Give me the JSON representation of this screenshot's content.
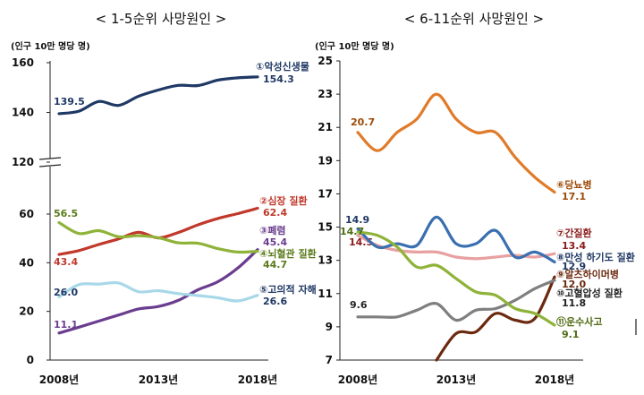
{
  "chart_data": [
    {
      "type": "line",
      "title": "< 1-5순위 사망원인 >",
      "unit_label": "(인구 10만 명당 명)",
      "x_ticks": [
        "2008년",
        "2013년",
        "2018년"
      ],
      "x_range": [
        2008,
        2018
      ],
      "y_ticks_upper": [
        "120",
        "140",
        "160"
      ],
      "y_ticks_lower": [
        "0",
        "20",
        "40",
        "60"
      ],
      "axis_break": "between 60 and 120",
      "grid": false,
      "series": [
        {
          "name": "①악성신생물",
          "color": "#1f3864",
          "x": [
            2008,
            2009,
            2010,
            2011,
            2012,
            2013,
            2014,
            2015,
            2016,
            2017,
            2018
          ],
          "values": [
            139.5,
            140.5,
            144.4,
            142.8,
            146.5,
            149.0,
            150.9,
            150.8,
            153.0,
            153.9,
            154.3
          ],
          "start_label": "139.5",
          "end_label": "154.3"
        },
        {
          "name": "②심장 질환",
          "color": "#c0392b",
          "x": [
            2008,
            2009,
            2010,
            2011,
            2012,
            2013,
            2014,
            2015,
            2016,
            2017,
            2018
          ],
          "values": [
            43.4,
            45.0,
            47.5,
            49.8,
            52.5,
            50.2,
            52.4,
            55.6,
            58.2,
            60.2,
            62.4
          ],
          "start_label": "43.4",
          "end_label": "62.4"
        },
        {
          "name": "③폐렴",
          "color": "#6a3d8f",
          "x": [
            2008,
            2009,
            2010,
            2011,
            2012,
            2013,
            2014,
            2015,
            2016,
            2017,
            2018
          ],
          "values": [
            11.1,
            13.5,
            16.0,
            18.5,
            21.0,
            22.0,
            24.5,
            28.9,
            32.2,
            37.8,
            45.4
          ],
          "start_label": "11.1",
          "end_label": "45.4"
        },
        {
          "name": "④뇌혈관 질환",
          "color": "#8fb339",
          "x": [
            2008,
            2009,
            2010,
            2011,
            2012,
            2013,
            2014,
            2015,
            2016,
            2017,
            2018
          ],
          "values": [
            56.5,
            52.0,
            53.2,
            50.7,
            51.1,
            50.3,
            48.2,
            48.0,
            45.8,
            44.4,
            44.7
          ],
          "start_label": "56.5",
          "end_label": "44.7"
        },
        {
          "name": "⑤고의적 자해",
          "color": "#a8d8e8",
          "x": [
            2008,
            2009,
            2010,
            2011,
            2012,
            2013,
            2014,
            2015,
            2016,
            2017,
            2018
          ],
          "values": [
            26.0,
            31.0,
            31.2,
            31.7,
            28.1,
            28.5,
            27.3,
            26.5,
            25.6,
            24.3,
            26.6
          ],
          "start_label": "26.0",
          "end_label": "26.6"
        }
      ]
    },
    {
      "type": "line",
      "title": "< 6-11순위 사망원인 >",
      "unit_label": "(인구 10만 명당 명)",
      "x_ticks": [
        "2008년",
        "2013년",
        "2018년"
      ],
      "x_range": [
        2008,
        2018
      ],
      "ylim": [
        7,
        25
      ],
      "y_ticks": [
        "7",
        "9",
        "11",
        "13",
        "15",
        "17",
        "19",
        "21",
        "23",
        "25"
      ],
      "grid": false,
      "series": [
        {
          "name": "⑥당뇨병",
          "color": "#e07b2a",
          "x": [
            2008,
            2009,
            2010,
            2011,
            2012,
            2013,
            2014,
            2015,
            2016,
            2017,
            2018
          ],
          "values": [
            20.7,
            19.6,
            20.7,
            21.5,
            23.0,
            21.5,
            20.7,
            20.7,
            19.2,
            18.0,
            17.1
          ],
          "start_label": "20.7",
          "end_label": "17.1"
        },
        {
          "name": "⑦간질환",
          "color": "#e8a0a0",
          "x": [
            2008,
            2009,
            2010,
            2011,
            2012,
            2013,
            2014,
            2015,
            2016,
            2017,
            2018
          ],
          "values": [
            14.5,
            13.9,
            13.6,
            13.5,
            13.5,
            13.2,
            13.1,
            13.2,
            13.3,
            13.2,
            13.4
          ],
          "start_label": "14.5",
          "end_label": "13.4"
        },
        {
          "name": "⑧만성 하기도 질환",
          "color": "#3a6fb0",
          "x": [
            2008,
            2009,
            2010,
            2011,
            2012,
            2013,
            2014,
            2015,
            2016,
            2017,
            2018
          ],
          "values": [
            14.9,
            13.8,
            14.0,
            13.9,
            15.6,
            14.0,
            14.0,
            14.8,
            13.2,
            13.5,
            12.9
          ],
          "start_label": "14.9",
          "end_label": "12.9"
        },
        {
          "name": "⑨알츠하이머병",
          "color": "#6b2a0f",
          "x": [
            2012,
            2013,
            2014,
            2015,
            2016,
            2017,
            2018
          ],
          "values": [
            7.0,
            8.6,
            8.7,
            9.8,
            9.4,
            9.5,
            12.0
          ],
          "start_label": "",
          "end_label": "12.0"
        },
        {
          "name": "⑩고혈압성 질환",
          "color": "#7f7f7f",
          "x": [
            2008,
            2009,
            2010,
            2011,
            2012,
            2013,
            2014,
            2015,
            2016,
            2017,
            2018
          ],
          "values": [
            9.6,
            9.6,
            9.6,
            10.0,
            10.4,
            9.4,
            10.0,
            10.1,
            10.6,
            11.3,
            11.8
          ],
          "start_label": "9.6",
          "end_label": "11.8"
        },
        {
          "name": "⑪운수사고",
          "color": "#8fb339",
          "x": [
            2008,
            2009,
            2010,
            2011,
            2012,
            2013,
            2014,
            2015,
            2016,
            2017,
            2018
          ],
          "values": [
            14.7,
            14.5,
            13.8,
            12.6,
            12.7,
            11.9,
            11.1,
            10.9,
            10.1,
            9.8,
            9.1
          ],
          "start_label": "14.7",
          "end_label": "9.1"
        }
      ]
    }
  ]
}
